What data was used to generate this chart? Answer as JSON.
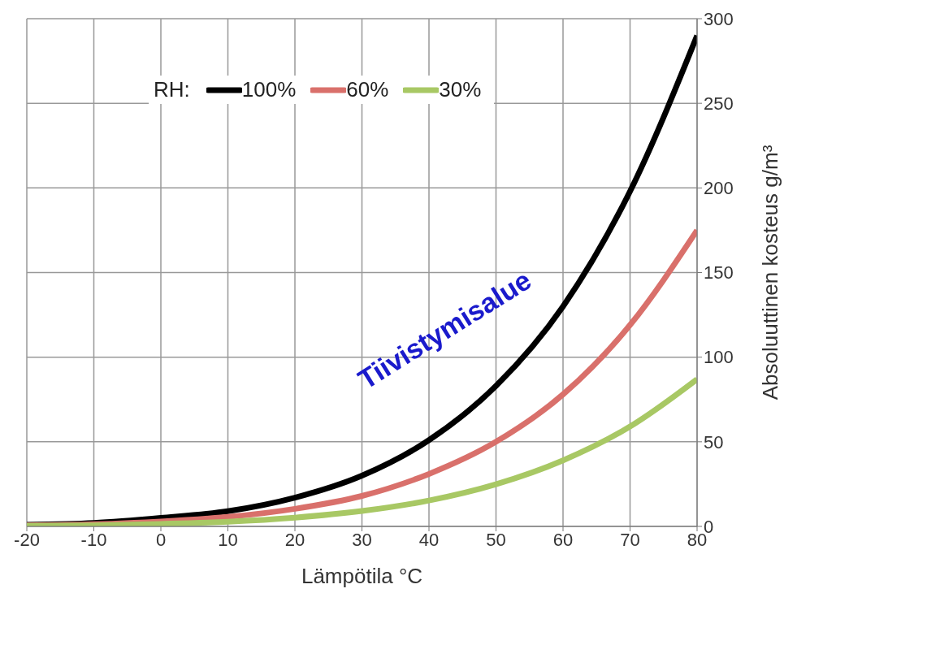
{
  "chart_data": {
    "type": "line",
    "xlabel": "Lämpötila  °C",
    "ylabel": "Absoluuttinen kosteus g/m³",
    "legend_title": "RH:",
    "annotations": [
      "Tiivistymisalue"
    ],
    "x": [
      -20,
      -10,
      0,
      10,
      20,
      30,
      40,
      50,
      60,
      70,
      80
    ],
    "series": [
      {
        "name": "100%",
        "color": "#000000",
        "values": [
          1,
          2,
          5,
          9,
          17,
          30,
          51,
          83,
          130,
          198,
          290
        ]
      },
      {
        "name": "60%",
        "color": "#d9706b",
        "values": [
          0.6,
          1.3,
          2.9,
          5.6,
          10.4,
          18,
          31,
          50,
          78,
          119,
          175
        ]
      },
      {
        "name": "30%",
        "color": "#a8c864",
        "values": [
          0.3,
          0.6,
          1.5,
          2.8,
          5.2,
          9.1,
          15.3,
          24.9,
          39,
          59,
          87
        ]
      }
    ],
    "xlim": [
      -20,
      80
    ],
    "xticks": [
      -20,
      -10,
      0,
      10,
      20,
      30,
      40,
      50,
      60,
      70,
      80
    ],
    "ylim": [
      0,
      300
    ],
    "yticks": [
      0,
      50,
      100,
      150,
      200,
      250,
      300
    ],
    "grid": true,
    "legend": "top left",
    "marker": "none",
    "line_style": "solid"
  }
}
